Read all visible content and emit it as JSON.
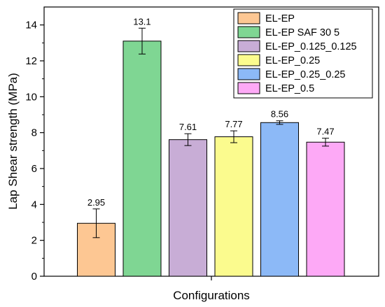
{
  "chart_data": {
    "type": "bar",
    "title": "",
    "xlabel": "Configurations",
    "ylabel": "Lap Shear strength (MPa)",
    "ylim": [
      0,
      15
    ],
    "yticks": [
      "0",
      "2",
      "4",
      "6",
      "8",
      "10",
      "12",
      "14"
    ],
    "grid": false,
    "legend_position": "top-right",
    "series": [
      {
        "name": "EL-EP",
        "value": 2.95,
        "label": "2.95",
        "error": 0.8,
        "color": "#fdc793"
      },
      {
        "name": "EL-EP SAF 30 5",
        "value": 13.1,
        "label": "13.1",
        "error": 0.72,
        "color": "#7fd693"
      },
      {
        "name": "EL-EP_0.125_0.125",
        "value": 7.61,
        "label": "7.61",
        "error": 0.33,
        "color": "#c8add6"
      },
      {
        "name": "EL-EP_0.25",
        "value": 7.77,
        "label": "7.77",
        "error": 0.33,
        "color": "#fbfb8e"
      },
      {
        "name": "EL-EP_0.25_0.25",
        "value": 8.56,
        "label": "8.56",
        "error": 0.1,
        "color": "#8cb9f7"
      },
      {
        "name": "EL-EP_0.5",
        "value": 7.47,
        "label": "7.47",
        "error": 0.22,
        "color": "#fda9f6"
      }
    ]
  }
}
